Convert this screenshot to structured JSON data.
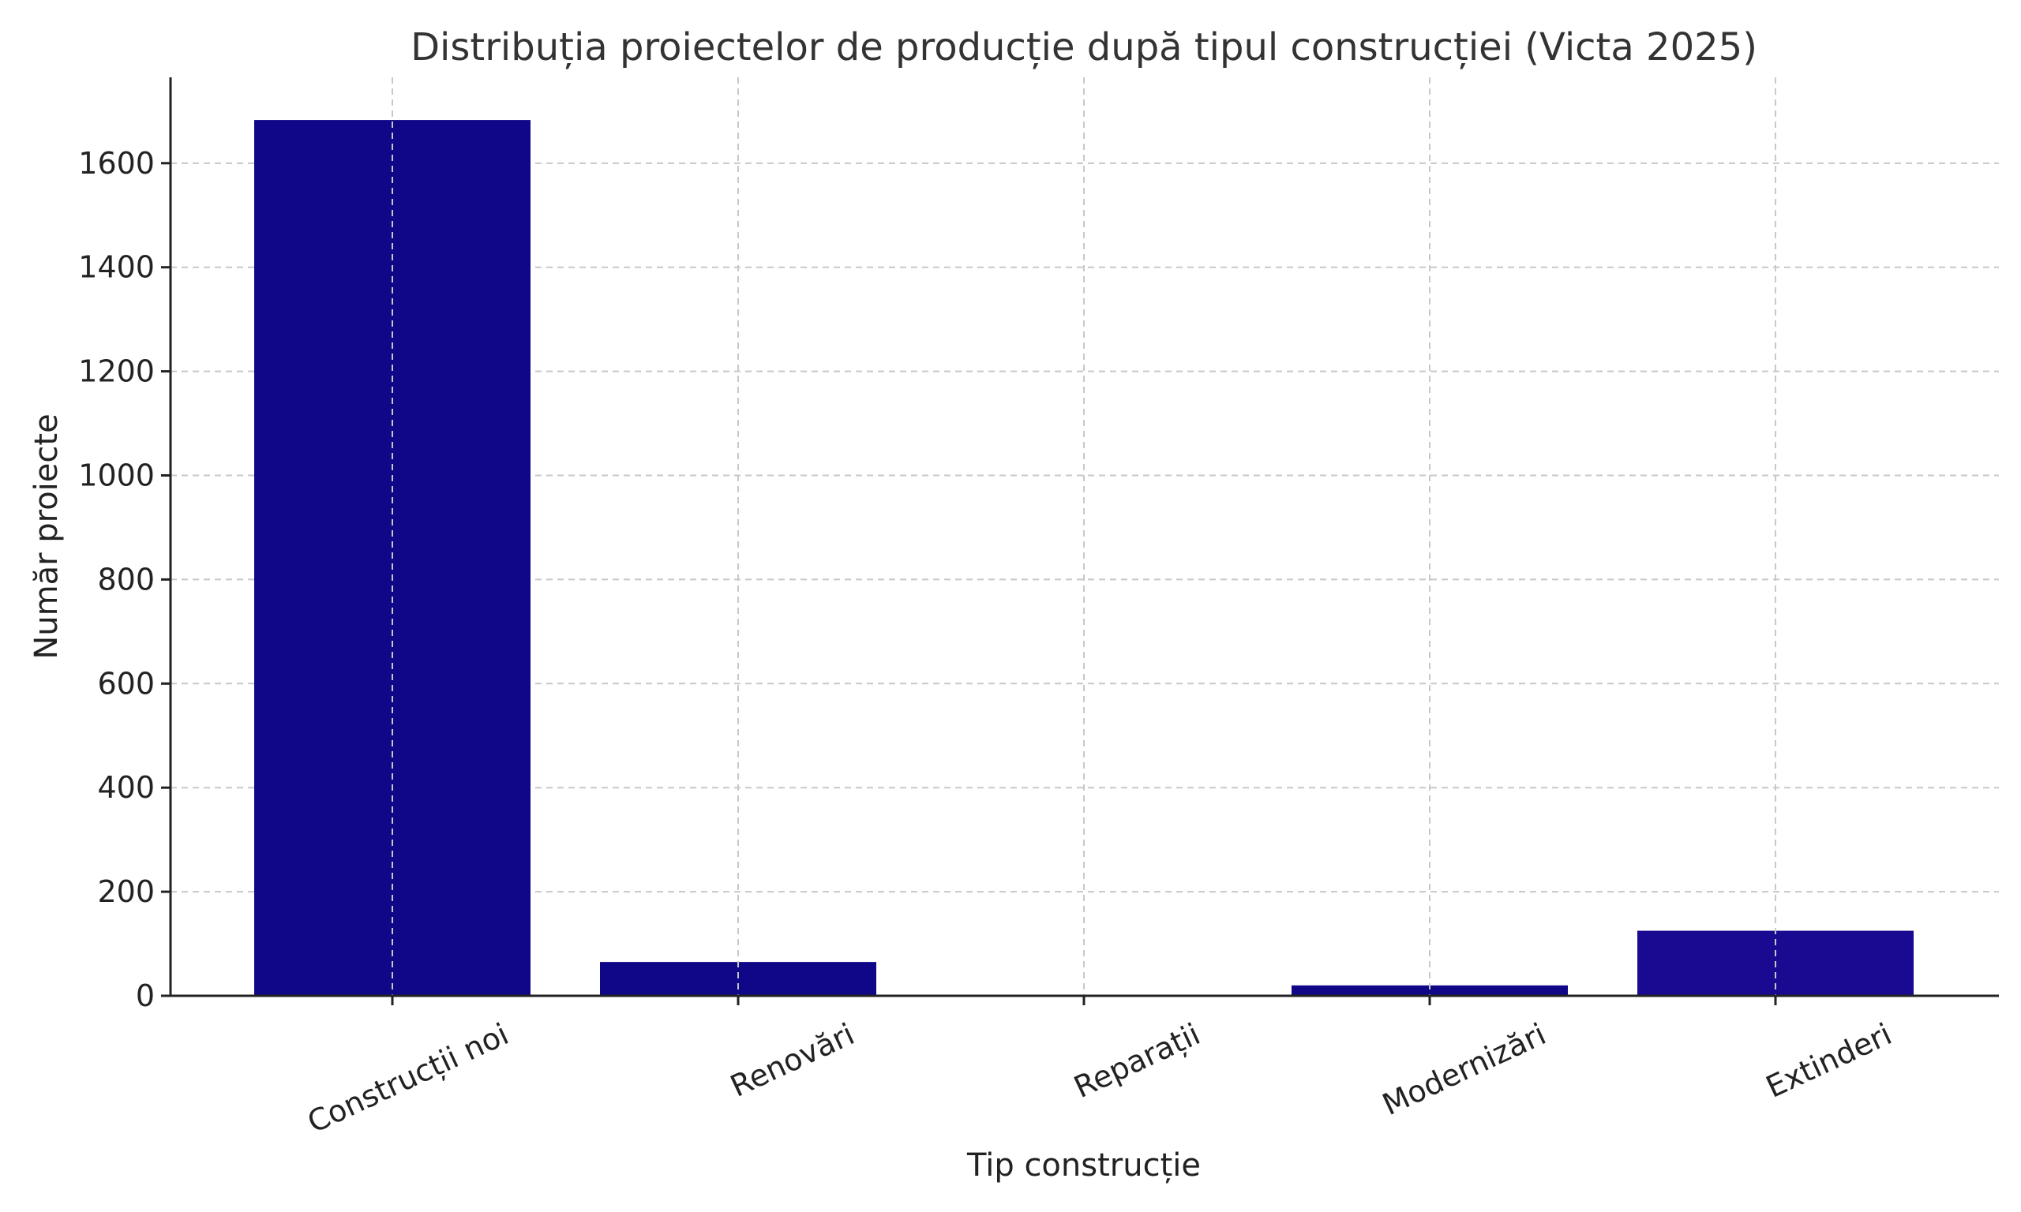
{
  "chart_data": {
    "type": "bar",
    "title": "Distribuția proiectelor de producție după tipul construcției (Victa 2025)",
    "xlabel": "Tip construcție",
    "ylabel": "Număr proiecte",
    "categories": [
      "Construcții noi",
      "Renovări",
      "Reparații",
      "Modernizări",
      "Extinderi"
    ],
    "values": [
      1683,
      65,
      0,
      20,
      125
    ],
    "y_ticks": [
      0,
      200,
      400,
      600,
      800,
      1000,
      1200,
      1400,
      1600
    ],
    "ylim": [
      0,
      1765
    ],
    "grid": true,
    "colors": {
      "bar": "#0f0787",
      "bar_last": "#1a0a91",
      "grid": "#c8c8c8",
      "axis": "#222222",
      "text": "#222222",
      "title": "#333333"
    }
  }
}
